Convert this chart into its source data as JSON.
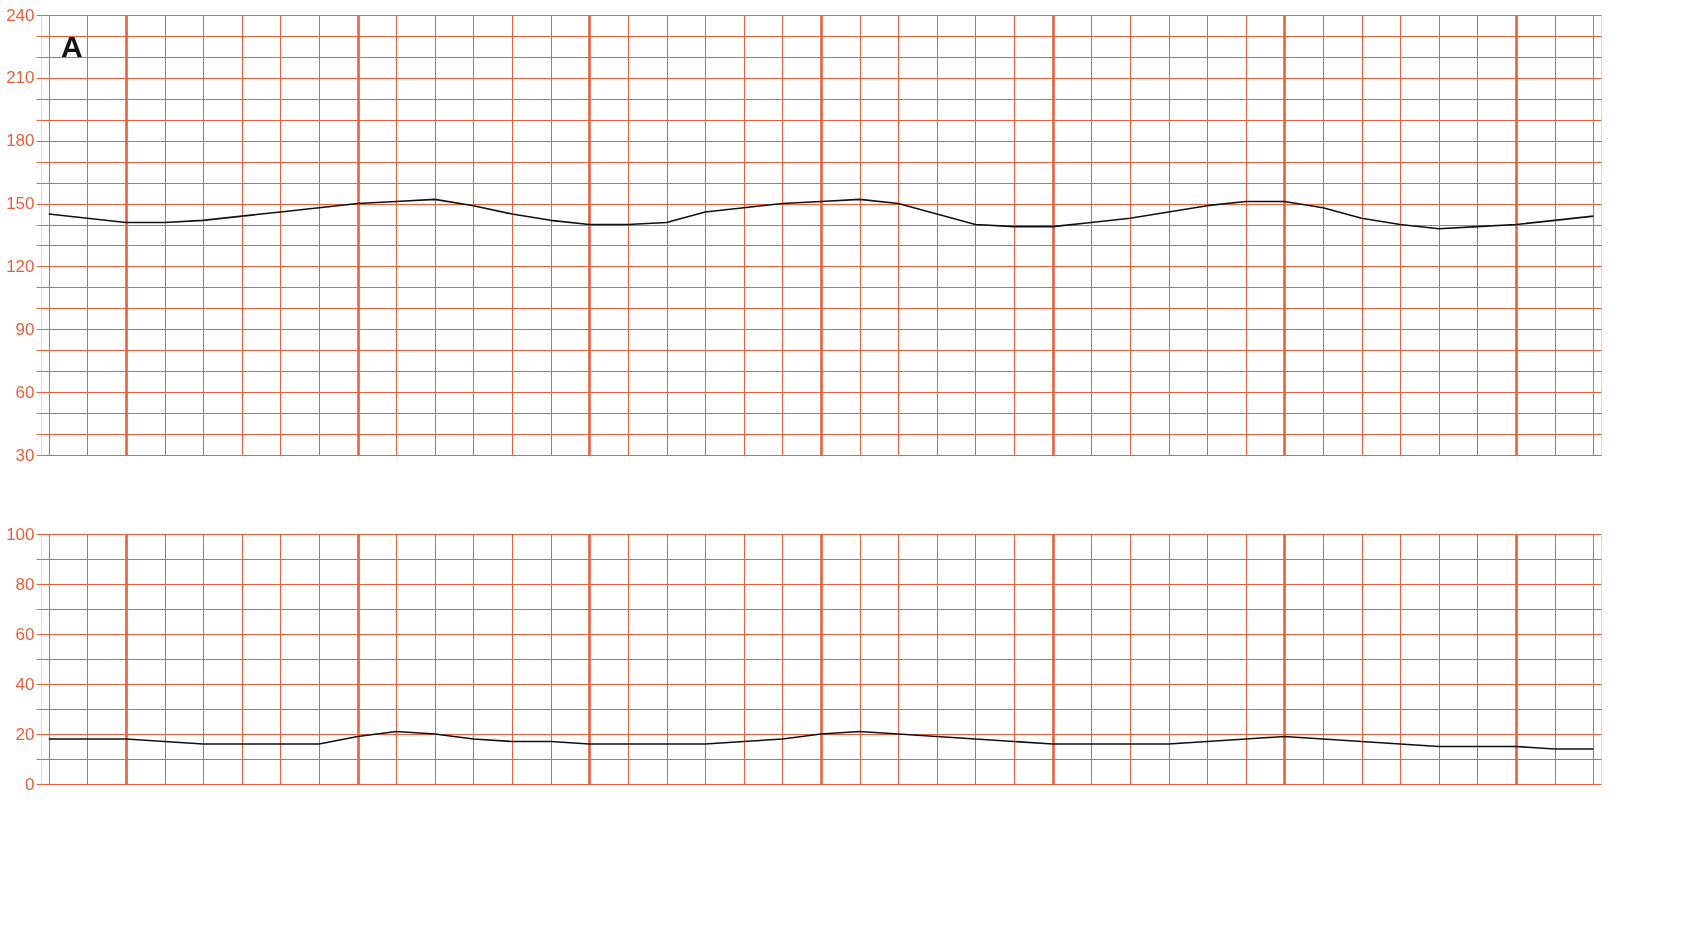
{
  "chart_data": [
    {
      "type": "line",
      "annotations": [
        "A"
      ],
      "categories": [
        null,
        null,
        null,
        null,
        null,
        null,
        null,
        null,
        null,
        null,
        null,
        null,
        null,
        null,
        null,
        null,
        null,
        null,
        null,
        null,
        null,
        null,
        null,
        null,
        null,
        null,
        null,
        null,
        null,
        null,
        null,
        null,
        null,
        null,
        null,
        null,
        null,
        null,
        null,
        null,
        null
      ],
      "series": [
        {
          "color": "#111111",
          "values": [
            145,
            143,
            141,
            141,
            142,
            144,
            146,
            148,
            150,
            151,
            152,
            149,
            145,
            142,
            140,
            140,
            141,
            146,
            148,
            150,
            151,
            152,
            150,
            145,
            140,
            139,
            139,
            141,
            143,
            146,
            149,
            151,
            151,
            148,
            143,
            140,
            138,
            139,
            140,
            142,
            144
          ]
        }
      ],
      "ylim": [
        30,
        240
      ],
      "yticks": [
        30,
        {
          "value": 40,
          "label": null
        },
        {
          "value": 50,
          "label": null
        },
        60,
        {
          "value": 70,
          "label": null
        },
        {
          "value": 80,
          "label": null
        },
        90,
        {
          "value": 100,
          "label": null
        },
        {
          "value": 110,
          "label": null
        },
        120,
        {
          "value": 130,
          "label": null
        },
        {
          "value": 140,
          "label": null
        },
        150,
        {
          "value": 160,
          "label": null
        },
        {
          "value": 170,
          "label": null
        },
        180,
        {
          "value": 190,
          "label": null
        },
        {
          "value": 200,
          "label": null
        },
        210,
        {
          "value": 220,
          "label": null
        },
        {
          "value": 230,
          "label": null
        },
        240
      ],
      "grid": true,
      "tick_labels": "y"
    },
    {
      "type": "line",
      "categories": [
        null,
        null,
        null,
        null,
        null,
        null,
        null,
        null,
        null,
        null,
        null,
        null,
        null,
        null,
        null,
        null,
        null,
        null,
        null,
        null,
        null,
        null,
        null,
        null,
        null,
        null,
        null,
        null,
        null,
        null,
        null,
        null,
        null,
        null,
        null,
        null,
        null,
        null,
        null,
        null,
        null
      ],
      "series": [
        {
          "color": "#111111",
          "values": [
            18,
            18,
            18,
            17,
            16,
            16,
            16,
            16,
            19,
            21,
            20,
            18,
            17,
            17,
            16,
            16,
            16,
            16,
            17,
            18,
            20,
            21,
            20,
            19,
            18,
            17,
            16,
            16,
            16,
            16,
            17,
            18,
            19,
            18,
            17,
            16,
            15,
            15,
            15,
            14,
            14
          ]
        }
      ],
      "ylim": [
        0,
        100
      ],
      "yticks": [
        0,
        {
          "value": 10,
          "label": null
        },
        20,
        {
          "value": 30,
          "label": null
        },
        40,
        {
          "value": 50,
          "label": null
        },
        60,
        {
          "value": 70,
          "label": null
        },
        80,
        {
          "value": 90,
          "label": null
        },
        100
      ],
      "grid": true,
      "tick_labels": "y"
    }
  ]
}
